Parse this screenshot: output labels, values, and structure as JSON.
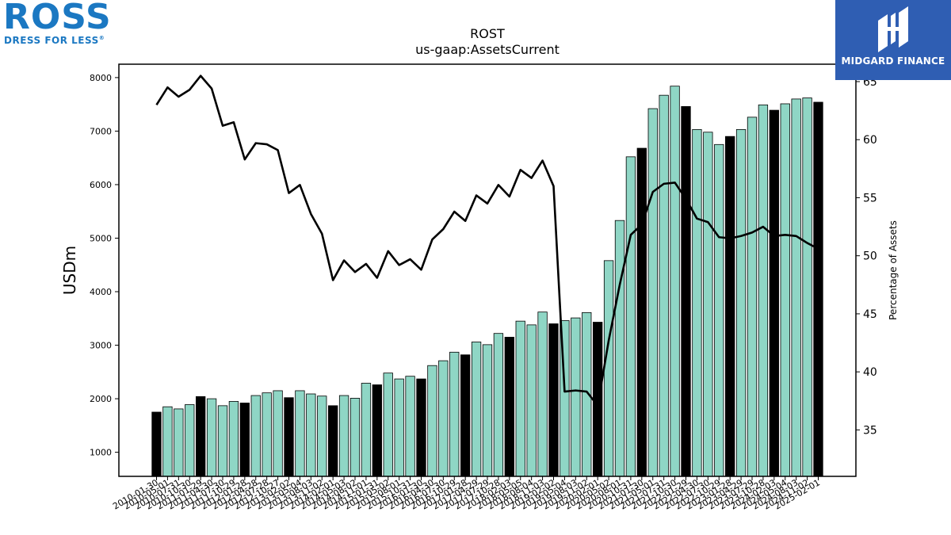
{
  "logos": {
    "company": {
      "name": "ROSS",
      "tagline": "DRESS FOR LESS",
      "registered": "®"
    },
    "publisher": {
      "name": "MIDGARD FINANCE"
    }
  },
  "colors": {
    "bar_default": "#8fd6c5",
    "bar_highlight": "#000000",
    "line": "#000000",
    "ross_blue": "#1b78c2",
    "midgard_bg": "#2f5eb3"
  },
  "chart_data": {
    "type": "bar",
    "title": "ROST",
    "subtitle": "us-gaap:AssetsCurrent",
    "ylabel": "USDm",
    "y2label": "Percentage of Assets",
    "ylim": [
      550,
      8250
    ],
    "y2lim": [
      31,
      66.5
    ],
    "yticks": [
      1000,
      2000,
      3000,
      4000,
      5000,
      6000,
      7000,
      8000
    ],
    "y2ticks": [
      35,
      40,
      45,
      50,
      55,
      60,
      65
    ],
    "x_ticklabels": [
      "2010-01-30",
      "2010-05-01",
      "2010-07-31",
      "2010-10-30",
      "2011-01-29",
      "2011-04-30",
      "2011-07-30",
      "2011-10-29",
      "2012-01-28",
      "2012-04-28",
      "2012-07-28",
      "2012-10-27",
      "2013-02-02",
      "2013-05-04",
      "2013-08-03",
      "2013-11-02",
      "2014-02-01",
      "2014-05-03",
      "2014-08-02",
      "2014-11-01",
      "2015-01-31",
      "2015-05-02",
      "2015-08-01",
      "2015-10-31",
      "2016-01-30",
      "2016-04-30",
      "2016-07-30",
      "2016-10-29",
      "2017-01-28",
      "2017-04-29",
      "2017-07-29",
      "2017-10-28",
      "2018-02-03",
      "2018-05-05",
      "2018-08-04",
      "2018-11-03",
      "2019-02-02",
      "2019-05-04",
      "2019-08-03",
      "2019-11-02",
      "2020-02-01",
      "2020-05-02",
      "2020-08-01",
      "2020-10-31",
      "2021-01-30",
      "2021-05-01",
      "2021-07-31",
      "2021-10-30",
      "2022-01-29",
      "2022-04-30",
      "2022-07-30",
      "2022-10-29",
      "2023-01-28",
      "2023-04-29",
      "2023-07-29",
      "2023-10-28",
      "2024-02-03",
      "2024-05-04",
      "2024-08-03",
      "2024-11-02",
      "2025-02-01"
    ],
    "series": [
      {
        "kind": "bar",
        "axis": "left",
        "values": [
          1750,
          1850,
          1810,
          1890,
          2040,
          2000,
          1870,
          1950,
          1920,
          2060,
          2110,
          2150,
          2020,
          2150,
          2090,
          2050,
          1870,
          2060,
          2010,
          2290,
          2260,
          2480,
          2370,
          2420,
          2370,
          2620,
          2710,
          2870,
          2820,
          3060,
          3010,
          3220,
          3150,
          3450,
          3380,
          3620,
          3400,
          3460,
          3510,
          3610,
          3430,
          4580,
          5330,
          6520,
          6680,
          7420,
          7670,
          7840,
          7460,
          7030,
          6980,
          6750,
          6900,
          7030,
          7260,
          7490,
          7390,
          7510,
          7600,
          7620,
          7540
        ],
        "highlight": [
          true,
          false,
          false,
          false,
          true,
          false,
          false,
          false,
          true,
          false,
          false,
          false,
          true,
          false,
          false,
          false,
          true,
          false,
          false,
          false,
          true,
          false,
          false,
          false,
          true,
          false,
          false,
          false,
          true,
          false,
          false,
          false,
          true,
          false,
          false,
          false,
          true,
          false,
          false,
          false,
          true,
          false,
          false,
          false,
          true,
          false,
          false,
          false,
          true,
          false,
          false,
          false,
          true,
          false,
          false,
          false,
          true,
          false,
          false,
          false,
          true
        ]
      },
      {
        "kind": "line",
        "axis": "right",
        "values": [
          63.0,
          64.5,
          63.7,
          64.3,
          65.5,
          64.4,
          61.2,
          61.5,
          58.3,
          59.7,
          59.6,
          59.1,
          55.4,
          56.1,
          53.6,
          51.9,
          47.9,
          49.6,
          48.6,
          49.3,
          48.1,
          50.4,
          49.2,
          49.7,
          48.8,
          51.4,
          52.3,
          53.8,
          53.0,
          55.2,
          54.5,
          56.1,
          55.1,
          57.4,
          56.7,
          58.2,
          56.0,
          38.3,
          38.4,
          38.3,
          37.1,
          42.7,
          47.5,
          51.8,
          52.7,
          55.5,
          56.2,
          56.3,
          54.9,
          53.2,
          52.9,
          51.6,
          51.5,
          51.7,
          52.0,
          52.5,
          51.7,
          51.8,
          51.7,
          51.1,
          50.6
        ]
      }
    ],
    "grid": false,
    "legend": "none"
  }
}
